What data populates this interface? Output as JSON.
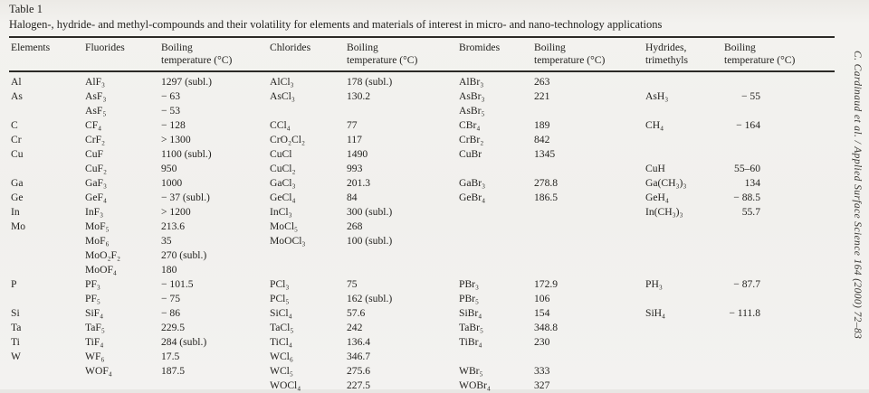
{
  "caption": {
    "label": "Table 1",
    "title": "Halogen-, hydride- and methyl-compounds and their volatility for elements and materials of interest in micro- and nano-technology applications"
  },
  "journal_citation": "C. Cardinaud et al. / Applied Surface Science 164 (2000) 72–83",
  "colors": {
    "paper": "#f1f0ed",
    "ink": "#23221f",
    "rule": "#2b2a26"
  },
  "table": {
    "headers": [
      "Elements",
      "Fluorides",
      "Boiling\ntemperature (°C)",
      "Chlorides",
      "Boiling\ntemperature (°C)",
      "Bromides",
      "Boiling\ntemperature (°C)",
      "Hydrides,\ntrimethyls",
      "Boiling\ntemperature (°C)"
    ],
    "rows": [
      [
        "Al",
        "AlF₃",
        "1297 (subl.)",
        "AlCl₃",
        "178 (subl.)",
        "AlBr₃",
        "263",
        "",
        ""
      ],
      [
        "As",
        "AsF₃",
        "− 63",
        "AsCl₃",
        "130.2",
        "AsBr₃",
        "221",
        "AsH₃",
        "− 55"
      ],
      [
        "",
        "AsF₅",
        "− 53",
        "",
        "",
        "AsBr₅",
        "",
        "",
        ""
      ],
      [
        "C",
        "CF₄",
        "− 128",
        "CCl₄",
        "77",
        "CBr₄",
        "189",
        "CH₄",
        "− 164"
      ],
      [
        "Cr",
        "CrF₂",
        "> 1300",
        "CrO₂Cl₂",
        "117",
        "CrBr₂",
        "842",
        "",
        ""
      ],
      [
        "Cu",
        "CuF",
        "1100 (subl.)",
        "CuCl",
        "1490",
        "CuBr",
        "1345",
        "",
        ""
      ],
      [
        "",
        "CuF₂",
        "950",
        "CuCl₂",
        "993",
        "",
        "",
        "CuH",
        "55–60"
      ],
      [
        "Ga",
        "GaF₃",
        "1000",
        "GaCl₃",
        "201.3",
        "GaBr₃",
        "278.8",
        "Ga(CH₃)₃",
        "134"
      ],
      [
        "Ge",
        "GeF₄",
        "− 37 (subl.)",
        "GeCl₄",
        "84",
        "GeBr₄",
        "186.5",
        "GeH₄",
        "− 88.5"
      ],
      [
        "In",
        "InF₃",
        "> 1200",
        "InCl₃",
        "300 (subl.)",
        "",
        "",
        "In(CH₃)₃",
        "55.7"
      ],
      [
        "Mo",
        "MoF₅",
        "213.6",
        "MoCl₅",
        "268",
        "",
        "",
        "",
        ""
      ],
      [
        "",
        "MoF₆",
        "35",
        "MoOCl₃",
        "100 (subl.)",
        "",
        "",
        "",
        ""
      ],
      [
        "",
        "MoO₂F₂",
        "270 (subl.)",
        "",
        "",
        "",
        "",
        "",
        ""
      ],
      [
        "",
        "MoOF₄",
        "180",
        "",
        "",
        "",
        "",
        "",
        ""
      ],
      [
        "P",
        "PF₃",
        "− 101.5",
        "PCl₃",
        "75",
        "PBr₃",
        "172.9",
        "PH₃",
        "− 87.7"
      ],
      [
        "",
        "PF₅",
        "− 75",
        "PCl₅",
        "162 (subl.)",
        "PBr₅",
        "106",
        "",
        ""
      ],
      [
        "Si",
        "SiF₄",
        "− 86",
        "SiCl₄",
        "57.6",
        "SiBr₄",
        "154",
        "SiH₄",
        "− 111.8"
      ],
      [
        "Ta",
        "TaF₅",
        "229.5",
        "TaCl₅",
        "242",
        "TaBr₅",
        "348.8",
        "",
        ""
      ],
      [
        "Ti",
        "TiF₄",
        "284 (subl.)",
        "TiCl₄",
        "136.4",
        "TiBr₄",
        "230",
        "",
        ""
      ],
      [
        "W",
        "WF₆",
        "17.5",
        "WCl₆",
        "346.7",
        "",
        "",
        "",
        ""
      ],
      [
        "",
        "WOF₄",
        "187.5",
        "WCl₅",
        "275.6",
        "WBr₅",
        "333",
        "",
        ""
      ],
      [
        "",
        "",
        "",
        "WOCl₄",
        "227.5",
        "WOBr₄",
        "327",
        "",
        ""
      ]
    ]
  }
}
